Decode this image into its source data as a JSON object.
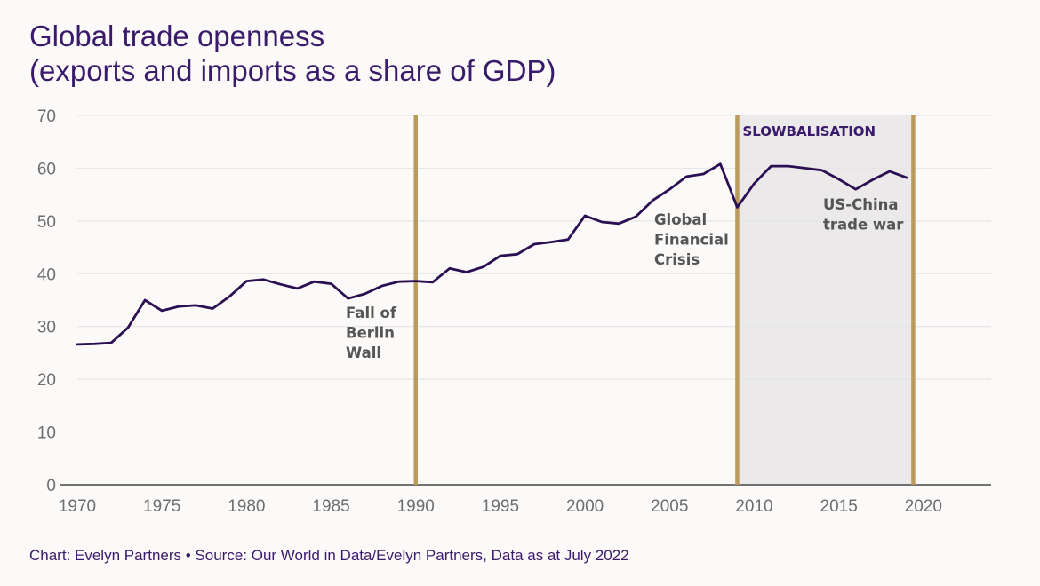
{
  "chart_data": {
    "type": "line",
    "title": [
      "Global trade openness",
      "(exports and imports as a share of GDP)"
    ],
    "source": "Chart: Evelyn Partners • Source: Our World in Data/Evelyn Partners, Data as at July 2022",
    "xlim": [
      1970,
      2024
    ],
    "ylim": [
      0,
      70
    ],
    "x_ticks": [
      "1970",
      "1975",
      "1980",
      "1985",
      "1990",
      "1995",
      "2000",
      "2005",
      "2010",
      "2015",
      "2020"
    ],
    "y_ticks": [
      "0",
      "10",
      "20",
      "30",
      "40",
      "50",
      "60",
      "70"
    ],
    "grid": "horizontal",
    "colors": {
      "line": "#2a0f52",
      "marker": "#bb9a5e",
      "shade": "#ebe9e9",
      "axis": "#444444",
      "grid": "#e6e6e6"
    },
    "series": [
      {
        "x": [
          1970,
          1971,
          1972,
          1973,
          1974,
          1975,
          1976,
          1977,
          1978,
          1979,
          1980,
          1981,
          1982,
          1983,
          1984,
          1985,
          1986,
          1987,
          1988,
          1989,
          1990,
          1991,
          1992,
          1993,
          1994,
          1995,
          1996,
          1997,
          1998,
          1999,
          2000,
          2001,
          2002,
          2003,
          2004,
          2005,
          2006,
          2007,
          2008,
          2009,
          2010,
          2011,
          2012,
          2013,
          2014,
          2015,
          2016,
          2017,
          2018,
          2019
        ],
        "values": [
          26.6,
          26.7,
          26.9,
          29.8,
          35.0,
          33.0,
          33.8,
          34.0,
          33.4,
          35.7,
          38.6,
          38.9,
          38.0,
          37.2,
          38.5,
          38.1,
          35.3,
          36.2,
          37.7,
          38.5,
          38.6,
          38.4,
          41.0,
          40.3,
          41.3,
          43.4,
          43.7,
          45.6,
          46.0,
          46.5,
          51.0,
          49.8,
          49.5,
          50.8,
          53.9,
          56.0,
          58.4,
          58.9,
          60.8,
          52.6,
          57.1,
          60.4,
          60.4,
          60.0,
          59.6,
          57.9,
          56.0,
          57.8,
          59.4,
          58.2
        ]
      }
    ],
    "events": [
      {
        "x": 1990,
        "label": [
          "Fall of",
          "Berlin",
          "Wall"
        ]
      },
      {
        "x": 2009,
        "label": [
          "Global",
          "Financial",
          "Crisis"
        ]
      },
      {
        "x": 2019.4,
        "label": [
          "US-China",
          "trade war"
        ]
      }
    ],
    "region": {
      "x0": 2009,
      "x1": 2019.4,
      "label": "SLOWBALISATION"
    }
  }
}
